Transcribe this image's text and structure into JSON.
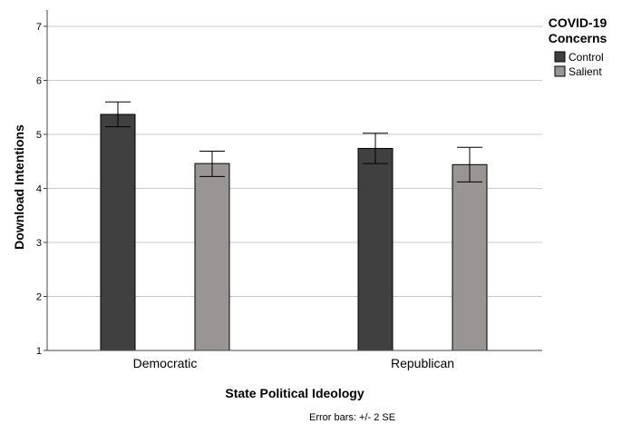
{
  "chart_data": {
    "type": "bar",
    "xlabel": "State Political Ideology",
    "ylabel": "Download Intentions",
    "ylim": [
      1,
      7
    ],
    "yticks": [
      1,
      2,
      3,
      4,
      5,
      6,
      7
    ],
    "grid": true,
    "categories": [
      "Democratic",
      "Republican"
    ],
    "legend": {
      "title_line1": "COVID-19",
      "title_line2": "Concerns",
      "placement": "top-right"
    },
    "series": [
      {
        "name": "Control",
        "color": "#404040",
        "values": [
          5.37,
          4.74
        ],
        "err_low": [
          5.14,
          4.46
        ],
        "err_high": [
          5.6,
          5.02
        ]
      },
      {
        "name": "Salient",
        "color": "#999595",
        "values": [
          4.46,
          4.44
        ],
        "err_low": [
          4.22,
          4.12
        ],
        "err_high": [
          4.69,
          4.76
        ]
      }
    ],
    "footnote": "Error bars: +/- 2 SE"
  }
}
